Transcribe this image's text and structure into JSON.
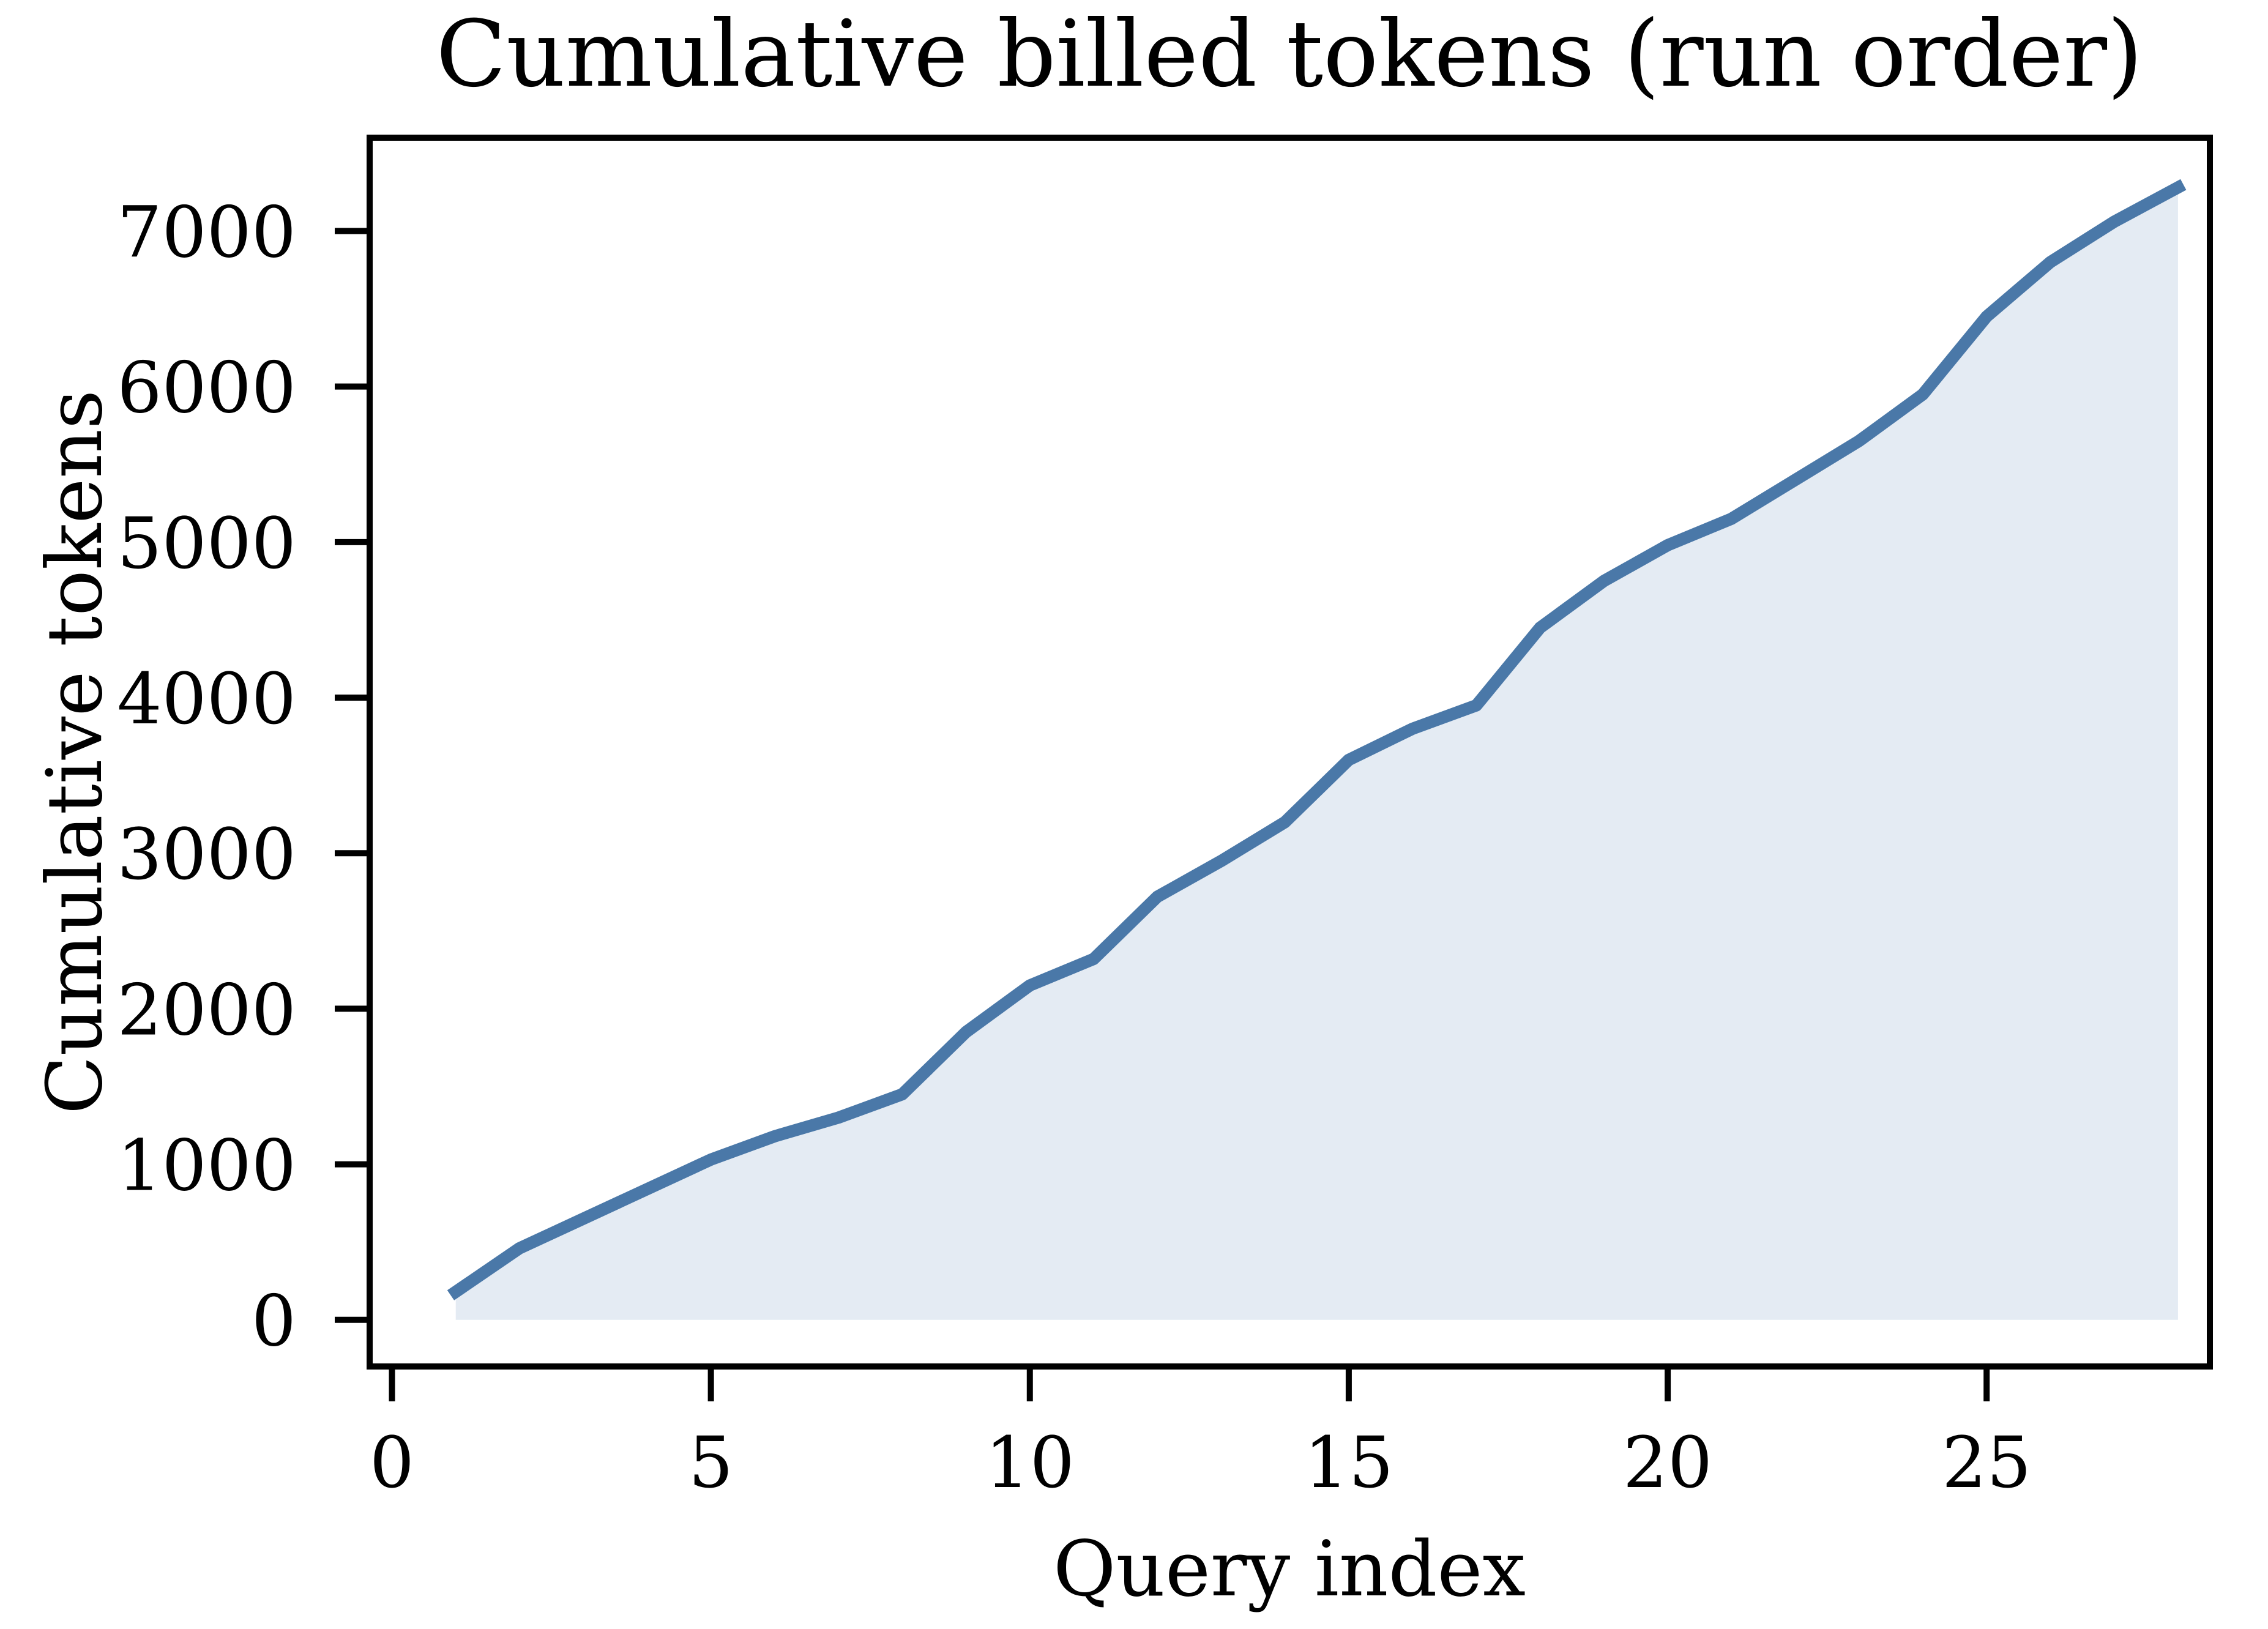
{
  "chart_data": {
    "type": "area",
    "title": "Cumulative billed tokens (run order)",
    "xlabel": "Query index",
    "ylabel": "Cumulative tokens",
    "x": [
      1,
      2,
      3,
      4,
      5,
      6,
      7,
      8,
      9,
      10,
      11,
      12,
      13,
      14,
      15,
      16,
      17,
      18,
      19,
      20,
      21,
      22,
      23,
      24,
      25,
      26,
      27,
      28
    ],
    "values": [
      180,
      460,
      650,
      840,
      1030,
      1180,
      1300,
      1450,
      1850,
      2150,
      2320,
      2720,
      2950,
      3200,
      3600,
      3800,
      3950,
      4450,
      4750,
      4980,
      5150,
      5400,
      5650,
      5950,
      6450,
      6800,
      7060,
      7280
    ],
    "x_ticks": [
      0,
      5,
      10,
      15,
      20,
      25
    ],
    "y_ticks": [
      0,
      1000,
      2000,
      3000,
      4000,
      5000,
      6000,
      7000
    ],
    "xlim": [
      -0.35,
      28.5
    ],
    "ylim": [
      -300,
      7600
    ],
    "line_color": "#4a78a8",
    "fill_color": "#e4ebf3",
    "spine_color": "#000000",
    "background_color": "#ffffff",
    "grid": false,
    "legend_position": "none"
  }
}
